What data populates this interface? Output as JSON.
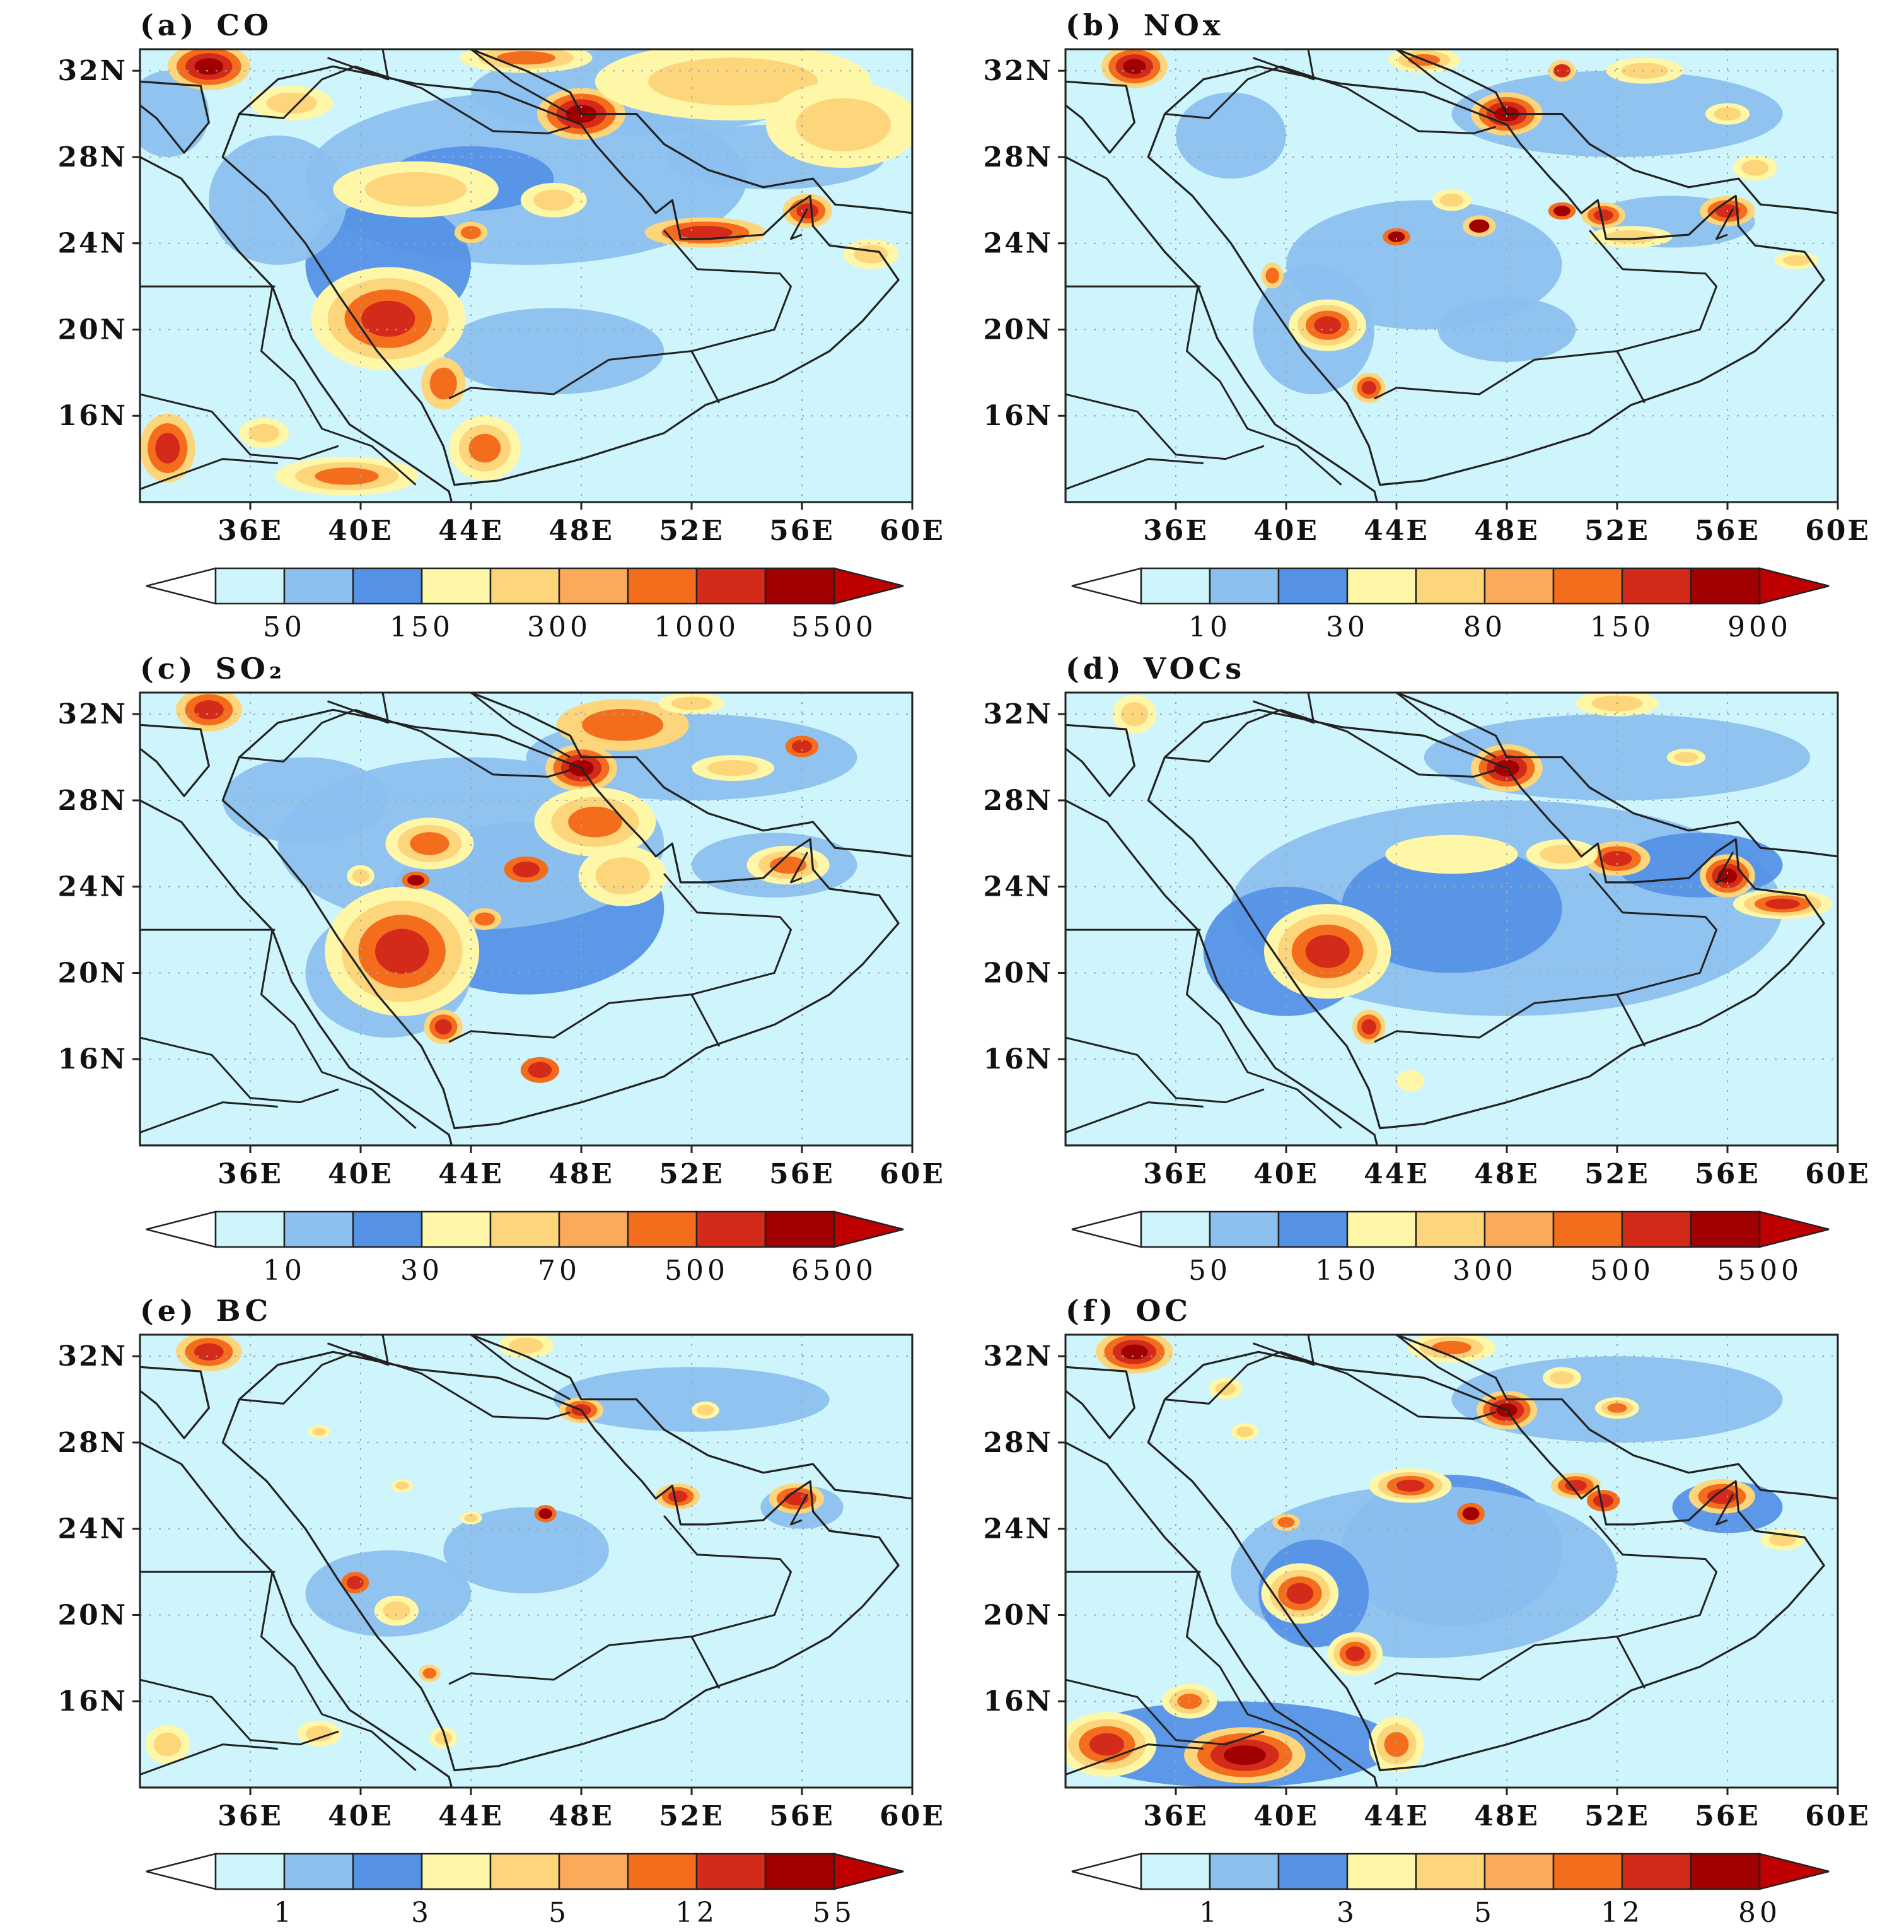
{
  "figure": {
    "x_ticks": [
      "36E",
      "40E",
      "44E",
      "48E",
      "52E",
      "56E",
      "60E"
    ],
    "y_ticks": [
      "32N",
      "28N",
      "24N",
      "20N",
      "16N"
    ],
    "palette": [
      "#ffffff",
      "#cdf5fb",
      "#8cc0ef",
      "#5592e6",
      "#fff7a8",
      "#fdd57a",
      "#fbaa5a",
      "#f46d1d",
      "#d42a1a",
      "#a10000",
      "#bf0000"
    ]
  },
  "panels": [
    {
      "id": "a",
      "label": "(a)",
      "species": "CO",
      "colorbar_labels": [
        "50",
        "150",
        "300",
        "1000",
        "5500"
      ]
    },
    {
      "id": "b",
      "label": "(b)",
      "species": "NOx",
      "colorbar_labels": [
        "10",
        "30",
        "80",
        "150",
        "900"
      ]
    },
    {
      "id": "c",
      "label": "(c)",
      "species": "SO₂",
      "colorbar_labels": [
        "10",
        "30",
        "70",
        "500",
        "6500"
      ]
    },
    {
      "id": "d",
      "label": "(d)",
      "species": "VOCs",
      "colorbar_labels": [
        "50",
        "150",
        "300",
        "500",
        "5500"
      ]
    },
    {
      "id": "e",
      "label": "(e)",
      "species": "BC",
      "colorbar_labels": [
        "1",
        "3",
        "5",
        "12",
        "55"
      ]
    },
    {
      "id": "f",
      "label": "(f)",
      "species": "OC",
      "colorbar_labels": [
        "1",
        "3",
        "5",
        "12",
        "80"
      ]
    }
  ]
}
